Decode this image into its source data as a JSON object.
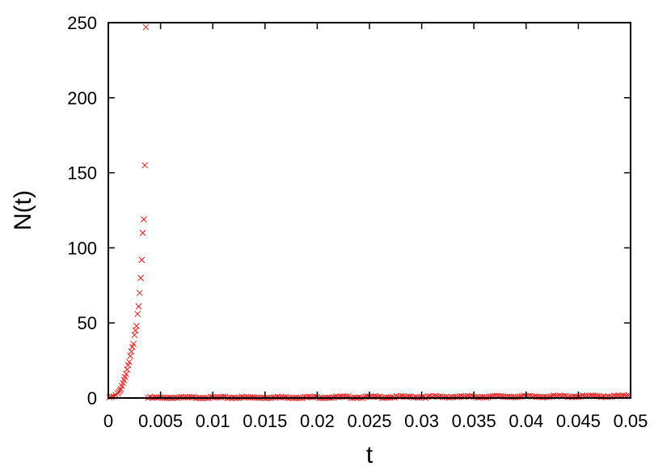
{
  "chart_data": {
    "type": "scatter",
    "title": "",
    "xlabel": "t",
    "ylabel": "N(t)",
    "xlim": [
      0,
      0.05
    ],
    "ylim": [
      0,
      250
    ],
    "grid": false,
    "legend": "none",
    "x_ticks": [
      0,
      0.005,
      0.01,
      0.015,
      0.02,
      0.025,
      0.03,
      0.035,
      0.04,
      0.045,
      0.05
    ],
    "x_tick_labels": [
      "0",
      "0.005",
      "0.01",
      "0.015",
      "0.02",
      "0.025",
      "0.03",
      "0.035",
      "0.04",
      "0.045",
      "0.05"
    ],
    "y_ticks": [
      0,
      50,
      100,
      150,
      200,
      250
    ],
    "y_tick_labels": [
      "0",
      "50",
      "100",
      "150",
      "200",
      "250"
    ],
    "marker": "x",
    "marker_color": "#e41a1c",
    "series": [
      {
        "x": [
          0.0001,
          0.0003,
          0.0005,
          0.0007,
          0.0009,
          0.001,
          0.0011,
          0.0012,
          0.0013,
          0.0014,
          0.0015,
          0.0016,
          0.0017,
          0.0018,
          0.0019,
          0.002,
          0.0021,
          0.0022,
          0.0023,
          0.0024,
          0.0025,
          0.0026,
          0.0027,
          0.0028,
          0.0029,
          0.003,
          0.0031,
          0.0032,
          0.0033,
          0.0034,
          0.0035,
          0.0036
        ],
        "y": [
          0.5,
          0.8,
          1.2,
          2,
          3,
          4,
          5,
          6,
          8,
          10,
          12,
          14,
          16,
          19,
          22,
          24,
          28,
          31,
          34,
          36,
          42,
          45,
          48,
          56,
          61,
          70,
          80,
          92,
          110,
          119,
          155,
          247
        ]
      },
      {
        "x_start": 0.0038,
        "x_end": 0.0498,
        "x_step": 0.0002,
        "y_start": 0.1,
        "y_end": 1.2
      }
    ]
  }
}
